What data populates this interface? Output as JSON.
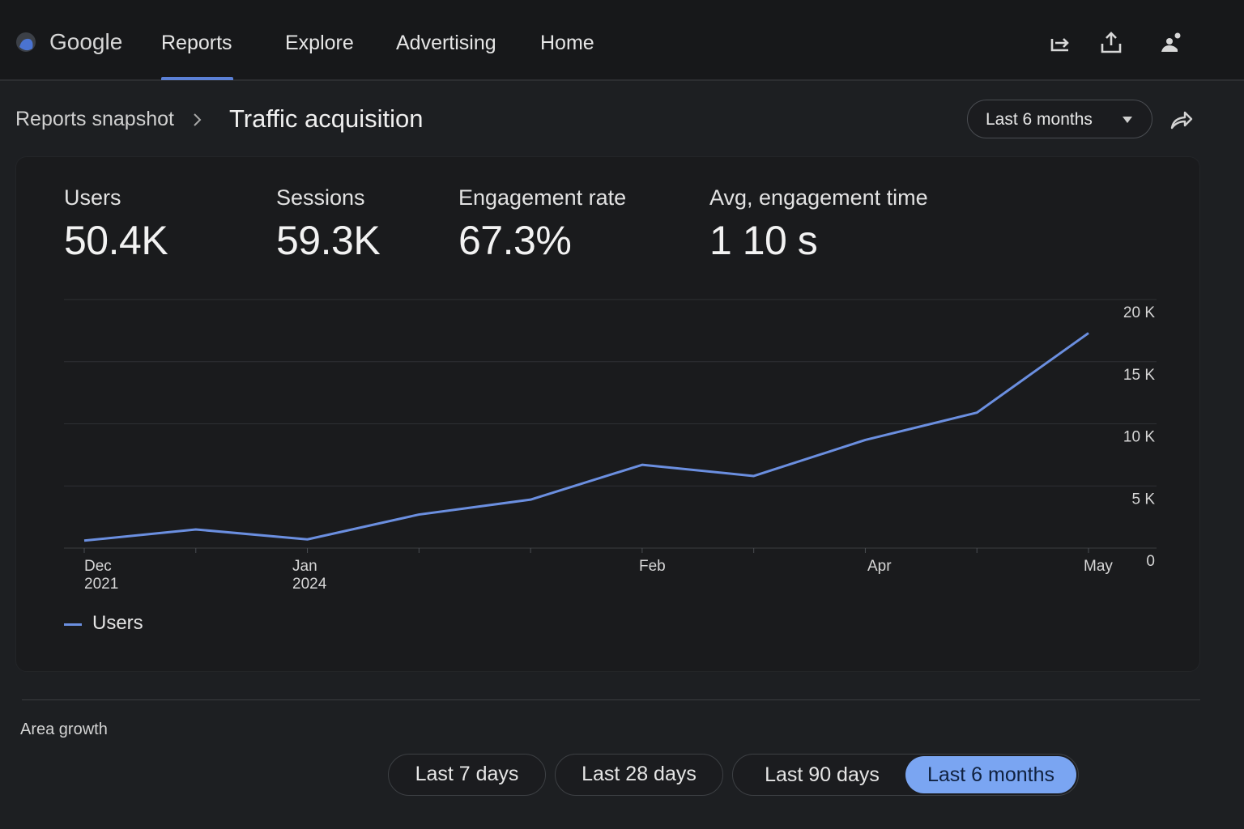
{
  "header": {
    "brand": "Google",
    "nav": [
      {
        "label": "Reports",
        "active": true
      },
      {
        "label": "Explore",
        "active": false
      },
      {
        "label": "Advertising",
        "active": false
      },
      {
        "label": "Home",
        "active": false
      }
    ],
    "icons": [
      "forward-icon",
      "upload-icon",
      "account-icon"
    ]
  },
  "breadcrumb": {
    "parent": "Reports snapshot",
    "current": "Traffic acquisition"
  },
  "date_range": {
    "selected": "Last 6 months"
  },
  "metrics": [
    {
      "label": "Users",
      "value": "50.4K"
    },
    {
      "label": "Sessions",
      "value": "59.3K"
    },
    {
      "label": "Engagement rate",
      "value": "67.3%"
    },
    {
      "label": "Avg, engagement time",
      "value": "1 10 s"
    }
  ],
  "chart_data": {
    "type": "line",
    "x_tick_labels": [
      {
        "top": "Dec",
        "bottom": "2021"
      },
      {
        "top": "Jan",
        "bottom": "2024"
      },
      {
        "top": "Feb",
        "bottom": ""
      },
      {
        "top": "Apr",
        "bottom": ""
      },
      {
        "top": "May",
        "bottom": ""
      }
    ],
    "y_tick_labels": [
      "20 K",
      "15 K",
      "10 K",
      "5 K",
      "0"
    ],
    "ylim": [
      0,
      20000
    ],
    "series": [
      {
        "name": "Users",
        "color": "#6b8fe0",
        "values": [
          600,
          1500,
          700,
          2700,
          3900,
          6700,
          5800,
          8700,
          10900,
          17300
        ]
      }
    ],
    "grid": true,
    "legend_position": "bottom-left"
  },
  "footer": {
    "section_label": "Area growth",
    "range_buttons": [
      {
        "label": "Last 7 days",
        "active": false
      },
      {
        "label": "Last 28 days",
        "active": false
      },
      {
        "label": "Last 90 days",
        "active": false
      },
      {
        "label": "Last 6 months",
        "active": true
      }
    ]
  },
  "colors": {
    "accent": "#7aa5f2",
    "line": "#6b8fe0",
    "background": "#1d1f22"
  }
}
